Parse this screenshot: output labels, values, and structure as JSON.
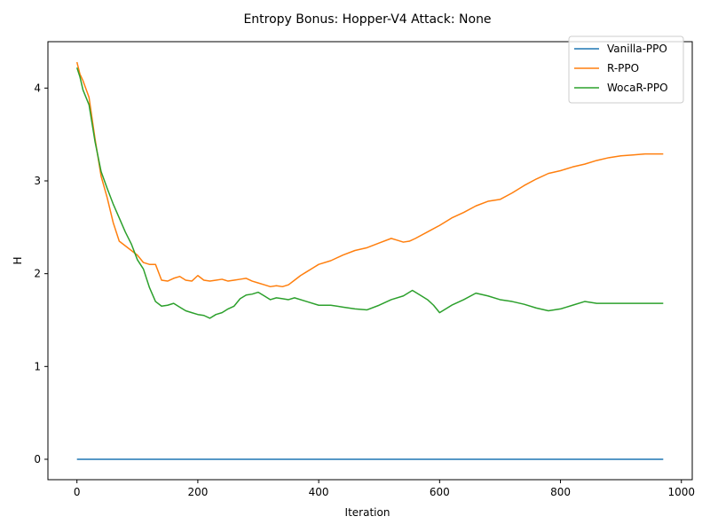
{
  "chart_data": {
    "type": "line",
    "title": "Entropy Bonus: Hopper-V4 Attack: None",
    "xlabel": "Iteration",
    "ylabel": "H",
    "xlim": [
      -48,
      1018
    ],
    "ylim": [
      -0.22,
      4.5
    ],
    "xticks": [
      0,
      200,
      400,
      600,
      800,
      1000
    ],
    "yticks": [
      0,
      1,
      2,
      3,
      4
    ],
    "grid": false,
    "legend_position": "top-right",
    "series": [
      {
        "name": "Vanilla-PPO",
        "color": "#1f77b4",
        "x": [
          0,
          100,
          200,
          300,
          400,
          500,
          600,
          700,
          800,
          900,
          970
        ],
        "y": [
          0,
          0,
          0,
          0,
          0,
          0,
          0,
          0,
          0,
          0,
          0
        ]
      },
      {
        "name": "R-PPO",
        "color": "#ff7f0e",
        "x": [
          0,
          5,
          10,
          20,
          30,
          40,
          50,
          60,
          70,
          80,
          90,
          100,
          110,
          120,
          130,
          140,
          150,
          160,
          170,
          180,
          190,
          200,
          210,
          220,
          230,
          240,
          250,
          260,
          270,
          280,
          290,
          300,
          310,
          320,
          330,
          340,
          350,
          360,
          370,
          380,
          390,
          400,
          420,
          440,
          460,
          480,
          500,
          520,
          530,
          540,
          550,
          560,
          580,
          600,
          620,
          640,
          660,
          680,
          700,
          720,
          740,
          760,
          780,
          800,
          820,
          840,
          860,
          880,
          900,
          920,
          940,
          970
        ],
        "y": [
          4.28,
          4.15,
          4.08,
          3.9,
          3.45,
          3.05,
          2.82,
          2.55,
          2.35,
          2.3,
          2.25,
          2.2,
          2.12,
          2.1,
          2.1,
          1.93,
          1.92,
          1.95,
          1.97,
          1.93,
          1.92,
          1.98,
          1.93,
          1.92,
          1.93,
          1.94,
          1.92,
          1.93,
          1.94,
          1.95,
          1.92,
          1.9,
          1.88,
          1.86,
          1.87,
          1.86,
          1.88,
          1.93,
          1.98,
          2.02,
          2.06,
          2.1,
          2.14,
          2.2,
          2.25,
          2.28,
          2.33,
          2.38,
          2.36,
          2.34,
          2.35,
          2.38,
          2.45,
          2.52,
          2.6,
          2.66,
          2.73,
          2.78,
          2.8,
          2.87,
          2.95,
          3.02,
          3.08,
          3.11,
          3.15,
          3.18,
          3.22,
          3.25,
          3.27,
          3.28,
          3.29,
          3.29
        ]
      },
      {
        "name": "WocaR-PPO",
        "color": "#2ca02c",
        "x": [
          0,
          5,
          10,
          20,
          30,
          40,
          50,
          60,
          70,
          80,
          90,
          100,
          110,
          120,
          130,
          140,
          150,
          160,
          170,
          180,
          190,
          200,
          210,
          220,
          230,
          240,
          250,
          260,
          270,
          280,
          290,
          300,
          310,
          320,
          330,
          340,
          350,
          360,
          380,
          400,
          420,
          440,
          460,
          480,
          500,
          520,
          540,
          555,
          570,
          580,
          590,
          600,
          620,
          640,
          660,
          680,
          700,
          720,
          740,
          760,
          780,
          800,
          820,
          840,
          860,
          880,
          900,
          920,
          940,
          970
        ],
        "y": [
          4.22,
          4.12,
          3.98,
          3.82,
          3.42,
          3.1,
          2.92,
          2.75,
          2.6,
          2.45,
          2.32,
          2.15,
          2.05,
          1.85,
          1.7,
          1.65,
          1.66,
          1.68,
          1.64,
          1.6,
          1.58,
          1.56,
          1.55,
          1.52,
          1.56,
          1.58,
          1.62,
          1.65,
          1.73,
          1.77,
          1.78,
          1.8,
          1.76,
          1.72,
          1.74,
          1.73,
          1.72,
          1.74,
          1.7,
          1.66,
          1.66,
          1.64,
          1.62,
          1.61,
          1.66,
          1.72,
          1.76,
          1.82,
          1.76,
          1.72,
          1.66,
          1.58,
          1.66,
          1.72,
          1.79,
          1.76,
          1.72,
          1.7,
          1.67,
          1.63,
          1.6,
          1.62,
          1.66,
          1.7,
          1.68,
          1.68,
          1.68,
          1.68,
          1.68,
          1.68
        ]
      }
    ]
  }
}
